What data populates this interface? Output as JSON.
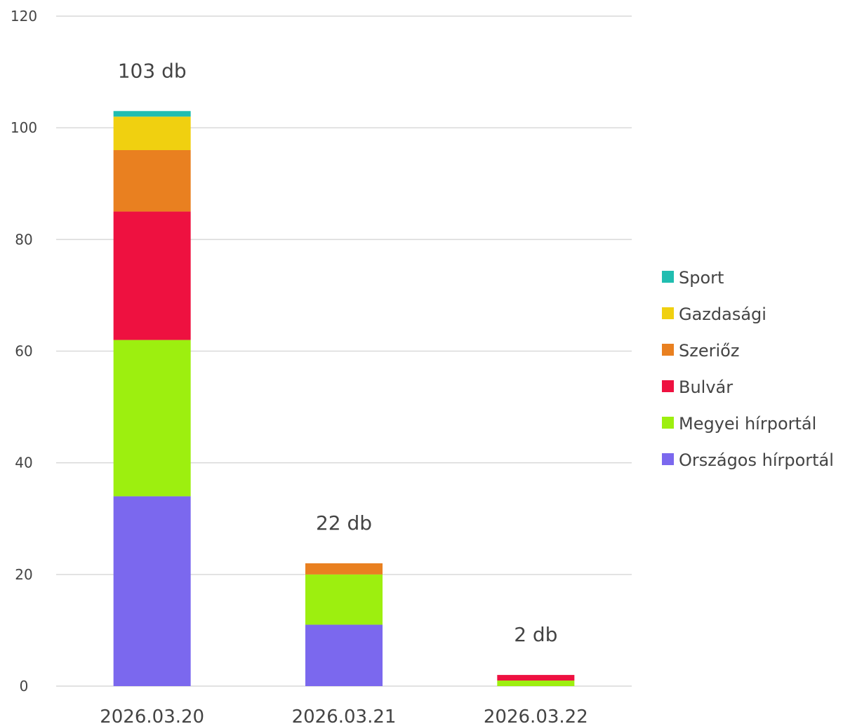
{
  "chart_data": {
    "type": "bar",
    "stacked": true,
    "categories": [
      "2026.03.20",
      "2026.03.21",
      "2026.03.22"
    ],
    "series": [
      {
        "name": "Országos hírportál",
        "values": [
          34,
          11,
          0
        ],
        "color": "#7b68ee"
      },
      {
        "name": "Megyei hírportál",
        "values": [
          28,
          9,
          1
        ],
        "color": "#9def0f"
      },
      {
        "name": "Bulvár",
        "values": [
          23,
          0,
          1
        ],
        "color": "#ee1140"
      },
      {
        "name": "Szeriőz",
        "values": [
          11,
          2,
          0
        ],
        "color": "#e98020"
      },
      {
        "name": "Gazdasági",
        "values": [
          6,
          0,
          0
        ],
        "color": "#f0d010"
      },
      {
        "name": "Sport",
        "values": [
          1,
          0,
          0
        ],
        "color": "#20bdb0"
      }
    ],
    "totals": [
      "103 db",
      "22 db",
      "2 db"
    ],
    "ylim": [
      0,
      120
    ],
    "yticks": [
      "0",
      "20",
      "40",
      "60",
      "80",
      "100",
      "120"
    ],
    "grid": true,
    "legend_position": "right",
    "title": "",
    "xlabel": "",
    "ylabel": ""
  }
}
